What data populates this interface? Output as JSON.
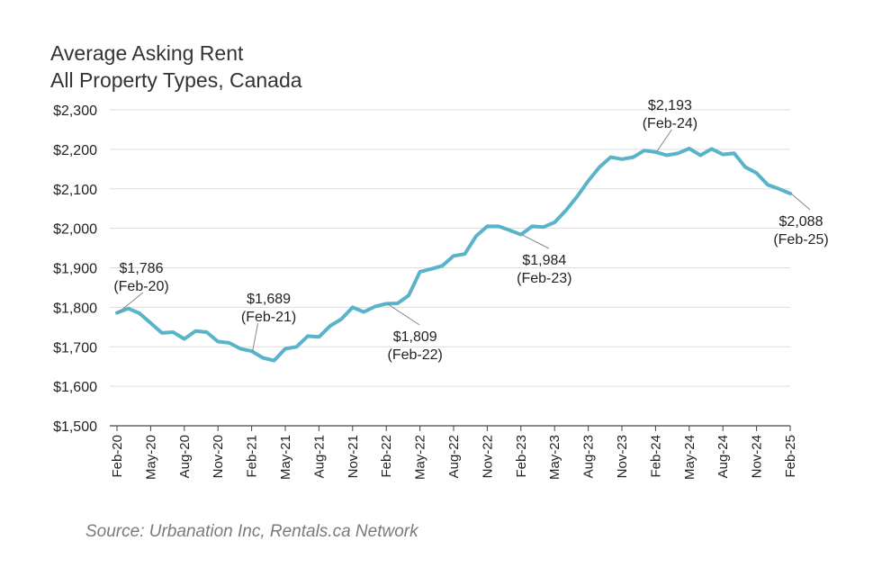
{
  "title_line1": "Average Asking Rent",
  "title_line2": "All Property Types, Canada",
  "source": "Source: Urbanation Inc, Rentals.ca Network",
  "colors": {
    "line": "#5ab4c9",
    "grid": "#dddddd",
    "axis": "#444444",
    "leader": "#888888"
  },
  "chart_data": {
    "type": "line",
    "title": "Average Asking Rent",
    "subtitle": "All Property Types, Canada",
    "xlabel": "",
    "ylabel": "",
    "ylim": [
      1500,
      2300
    ],
    "y_ticks": [
      "$1,500",
      "$1,600",
      "$1,700",
      "$1,800",
      "$1,900",
      "$2,000",
      "$2,100",
      "$2,200",
      "$2,300"
    ],
    "y_tick_values": [
      1500,
      1600,
      1700,
      1800,
      1900,
      2000,
      2100,
      2200,
      2300
    ],
    "x_ticks": [
      "Feb-20",
      "May-20",
      "Aug-20",
      "Nov-20",
      "Feb-21",
      "May-21",
      "Aug-21",
      "Nov-21",
      "Feb-22",
      "May-22",
      "Aug-22",
      "Nov-22",
      "Feb-23",
      "May-23",
      "Aug-23",
      "Nov-23",
      "Feb-24",
      "May-24",
      "Aug-24",
      "Nov-24",
      "Feb-25"
    ],
    "grid": true,
    "legend": "none",
    "x": [
      "Feb-20",
      "Mar-20",
      "Apr-20",
      "May-20",
      "Jun-20",
      "Jul-20",
      "Aug-20",
      "Sep-20",
      "Oct-20",
      "Nov-20",
      "Dec-20",
      "Jan-21",
      "Feb-21",
      "Mar-21",
      "Apr-21",
      "May-21",
      "Jun-21",
      "Jul-21",
      "Aug-21",
      "Sep-21",
      "Oct-21",
      "Nov-21",
      "Dec-21",
      "Jan-22",
      "Feb-22",
      "Mar-22",
      "Apr-22",
      "May-22",
      "Jun-22",
      "Jul-22",
      "Aug-22",
      "Sep-22",
      "Oct-22",
      "Nov-22",
      "Dec-22",
      "Jan-23",
      "Feb-23",
      "Mar-23",
      "Apr-23",
      "May-23",
      "Jun-23",
      "Jul-23",
      "Aug-23",
      "Sep-23",
      "Oct-23",
      "Nov-23",
      "Dec-23",
      "Jan-24",
      "Feb-24",
      "Mar-24",
      "Apr-24",
      "May-24",
      "Jun-24",
      "Jul-24",
      "Aug-24",
      "Sep-24",
      "Oct-24",
      "Nov-24",
      "Dec-24",
      "Jan-25",
      "Feb-25"
    ],
    "series": [
      {
        "values": [
          1786,
          1797,
          1785,
          1760,
          1735,
          1737,
          1720,
          1740,
          1737,
          1713,
          1710,
          1695,
          1689,
          1672,
          1665,
          1695,
          1700,
          1727,
          1725,
          1753,
          1770,
          1800,
          1788,
          1802,
          1809,
          1810,
          1830,
          1890,
          1897,
          1905,
          1930,
          1935,
          1980,
          2005,
          2005,
          1995,
          1984,
          2005,
          2003,
          2015,
          2045,
          2080,
          2120,
          2155,
          2180,
          2175,
          2180,
          2197,
          2193,
          2185,
          2190,
          2202,
          2185,
          2201,
          2187,
          2190,
          2155,
          2140,
          2110,
          2100,
          2088
        ]
      }
    ],
    "annotations": [
      {
        "value_label": "$1,786",
        "date_label": "(Feb-20)",
        "x": "Feb-20",
        "y": 1786
      },
      {
        "value_label": "$1,689",
        "date_label": "(Feb-21)",
        "x": "Feb-21",
        "y": 1689
      },
      {
        "value_label": "$1,809",
        "date_label": "(Feb-22)",
        "x": "Feb-22",
        "y": 1809
      },
      {
        "value_label": "$1,984",
        "date_label": "(Feb-23)",
        "x": "Feb-23",
        "y": 1984
      },
      {
        "value_label": "$2,193",
        "date_label": "(Feb-24)",
        "x": "Feb-24",
        "y": 2193
      },
      {
        "value_label": "$2,088",
        "date_label": "(Feb-25)",
        "x": "Feb-25",
        "y": 2088
      }
    ]
  }
}
